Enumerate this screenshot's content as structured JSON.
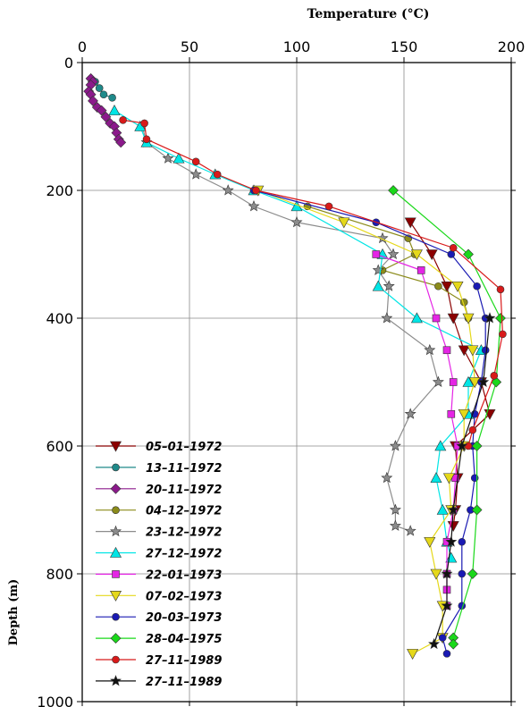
{
  "chart_data": {
    "type": "line",
    "title": "Temperature (°C)",
    "xlabel": "Temperature (°C)",
    "ylabel": "Depth (m)",
    "xlim": [
      0,
      200
    ],
    "ylim": [
      0,
      1000
    ],
    "y_inverted": true,
    "x_axis_position": "top",
    "xticks": [
      0,
      50,
      100,
      150,
      200
    ],
    "yticks": [
      0,
      200,
      400,
      600,
      800,
      1000
    ],
    "grid": true,
    "legend_position": "bottom-left",
    "series": [
      {
        "name": "05–01–1972",
        "color": "#8b0000",
        "marker": "triangle-down",
        "points": [
          [
            153,
            250
          ],
          [
            163,
            300
          ],
          [
            170,
            350
          ],
          [
            173,
            400
          ],
          [
            178,
            450
          ],
          [
            186,
            500
          ],
          [
            190,
            550
          ],
          [
            174,
            600
          ],
          [
            175,
            650
          ],
          [
            174,
            700
          ],
          [
            173,
            725
          ]
        ]
      },
      {
        "name": "13–11–1972",
        "color": "#1f8a8a",
        "marker": "circle",
        "points": [
          [
            6,
            30
          ],
          [
            8,
            40
          ],
          [
            10,
            50
          ],
          [
            14,
            55
          ]
        ]
      },
      {
        "name": "20–11–1972",
        "color": "#8b1a8b",
        "marker": "diamond",
        "points": [
          [
            4,
            25
          ],
          [
            5,
            30
          ],
          [
            4,
            35
          ],
          [
            3,
            45
          ],
          [
            4,
            50
          ],
          [
            5,
            60
          ],
          [
            7,
            70
          ],
          [
            9,
            75
          ],
          [
            11,
            85
          ],
          [
            13,
            95
          ],
          [
            15,
            100
          ],
          [
            16,
            110
          ],
          [
            17,
            120
          ],
          [
            18,
            125
          ]
        ]
      },
      {
        "name": "04–12–1972",
        "color": "#8b8b1a",
        "marker": "circle",
        "points": [
          [
            105,
            225
          ],
          [
            152,
            275
          ],
          [
            155,
            300
          ],
          [
            140,
            325
          ],
          [
            166,
            350
          ],
          [
            178,
            375
          ],
          [
            180,
            400
          ]
        ]
      },
      {
        "name": "23–12–1972",
        "color": "#8c8c8c",
        "marker": "star",
        "points": [
          [
            28,
            100
          ],
          [
            30,
            125
          ],
          [
            40,
            150
          ],
          [
            53,
            175
          ],
          [
            68,
            200
          ],
          [
            80,
            225
          ],
          [
            100,
            250
          ],
          [
            140,
            275
          ],
          [
            145,
            300
          ],
          [
            138,
            325
          ],
          [
            143,
            350
          ],
          [
            142,
            400
          ],
          [
            162,
            450
          ],
          [
            166,
            500
          ],
          [
            153,
            550
          ],
          [
            146,
            600
          ],
          [
            142,
            650
          ],
          [
            146,
            700
          ],
          [
            146,
            725
          ],
          [
            153,
            733
          ]
        ]
      },
      {
        "name": "27–12–1972",
        "color": "#00e5e5",
        "marker": "triangle-up",
        "points": [
          [
            15,
            75
          ],
          [
            27,
            100
          ],
          [
            30,
            125
          ],
          [
            45,
            150
          ],
          [
            62,
            175
          ],
          [
            80,
            200
          ],
          [
            100,
            225
          ],
          [
            140,
            300
          ],
          [
            138,
            350
          ],
          [
            156,
            400
          ],
          [
            186,
            450
          ],
          [
            180,
            500
          ],
          [
            180,
            550
          ],
          [
            167,
            600
          ],
          [
            165,
            650
          ],
          [
            168,
            700
          ],
          [
            170,
            750
          ],
          [
            172,
            775
          ]
        ]
      },
      {
        "name": "22–01–1973",
        "color": "#e524e5",
        "marker": "square",
        "points": [
          [
            137,
            300
          ],
          [
            158,
            325
          ],
          [
            165,
            400
          ],
          [
            170,
            450
          ],
          [
            173,
            500
          ],
          [
            172,
            550
          ],
          [
            175,
            600
          ],
          [
            174,
            650
          ],
          [
            173,
            700
          ],
          [
            170,
            750
          ],
          [
            170,
            800
          ],
          [
            170,
            825
          ],
          [
            170,
            850
          ]
        ]
      },
      {
        "name": "07–02–1973",
        "color": "#e5d81a",
        "marker": "triangle-down",
        "points": [
          [
            82,
            200
          ],
          [
            122,
            250
          ],
          [
            156,
            300
          ],
          [
            175,
            350
          ],
          [
            180,
            400
          ],
          [
            182,
            450
          ],
          [
            183,
            500
          ],
          [
            178,
            550
          ],
          [
            178,
            600
          ],
          [
            171,
            650
          ],
          [
            172,
            700
          ],
          [
            162,
            750
          ],
          [
            165,
            800
          ],
          [
            168,
            850
          ],
          [
            168,
            900
          ],
          [
            154,
            925
          ]
        ]
      },
      {
        "name": "20–03–1973",
        "color": "#1a1ab3",
        "marker": "circle",
        "points": [
          [
            80,
            200
          ],
          [
            137,
            250
          ],
          [
            172,
            300
          ],
          [
            184,
            350
          ],
          [
            188,
            400
          ],
          [
            188,
            450
          ],
          [
            186,
            500
          ],
          [
            183,
            550
          ],
          [
            182,
            600
          ],
          [
            183,
            650
          ],
          [
            181,
            700
          ],
          [
            177,
            750
          ],
          [
            177,
            800
          ],
          [
            177,
            850
          ],
          [
            168,
            900
          ],
          [
            170,
            925
          ]
        ]
      },
      {
        "name": "28–04–1975",
        "color": "#1ad81a",
        "marker": "diamond",
        "points": [
          [
            145,
            200
          ],
          [
            180,
            300
          ],
          [
            195,
            400
          ],
          [
            193,
            500
          ],
          [
            184,
            600
          ],
          [
            184,
            700
          ],
          [
            182,
            800
          ],
          [
            173,
            900
          ],
          [
            173,
            910
          ]
        ]
      },
      {
        "name": "27–11–1989",
        "color": "#d81a1a",
        "marker": "circle",
        "points": [
          [
            19,
            90
          ],
          [
            29,
            95
          ],
          [
            30,
            120
          ],
          [
            53,
            155
          ],
          [
            63,
            175
          ],
          [
            81,
            200
          ],
          [
            115,
            225
          ],
          [
            173,
            290
          ],
          [
            195,
            355
          ],
          [
            196,
            425
          ],
          [
            192,
            490
          ],
          [
            182,
            575
          ],
          [
            180,
            600
          ]
        ]
      },
      {
        "name": "27–11–1989",
        "color": "#111111",
        "marker": "star",
        "points": [
          [
            190,
            400
          ],
          [
            187,
            500
          ],
          [
            177,
            600
          ],
          [
            173,
            700
          ],
          [
            172,
            750
          ],
          [
            170,
            800
          ],
          [
            170,
            850
          ],
          [
            164,
            910
          ]
        ]
      }
    ]
  }
}
